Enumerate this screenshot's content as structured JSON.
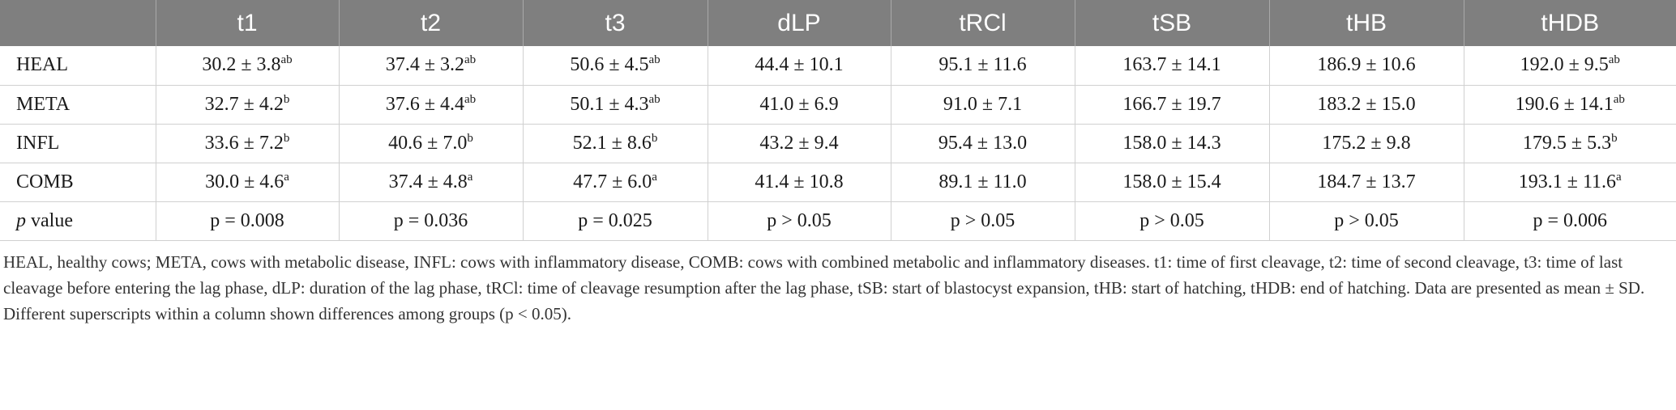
{
  "table": {
    "columns": [
      "",
      "t1",
      "t2",
      "t3",
      "dLP",
      "tRCl",
      "tSB",
      "tHB",
      "tHDB"
    ],
    "rows": [
      {
        "label": "HEAL",
        "cells": [
          {
            "v": "30.2 ± 3.8",
            "s": "ab"
          },
          {
            "v": "37.4 ± 3.2",
            "s": "ab"
          },
          {
            "v": "50.6 ± 4.5",
            "s": "ab"
          },
          {
            "v": "44.4 ± 10.1",
            "s": ""
          },
          {
            "v": "95.1 ± 11.6",
            "s": ""
          },
          {
            "v": "163.7 ± 14.1",
            "s": ""
          },
          {
            "v": "186.9 ± 10.6",
            "s": ""
          },
          {
            "v": "192.0 ± 9.5",
            "s": "ab"
          }
        ]
      },
      {
        "label": "META",
        "cells": [
          {
            "v": "32.7 ± 4.2",
            "s": "b"
          },
          {
            "v": "37.6 ± 4.4",
            "s": "ab"
          },
          {
            "v": "50.1 ± 4.3",
            "s": "ab"
          },
          {
            "v": "41.0 ± 6.9",
            "s": ""
          },
          {
            "v": "91.0 ± 7.1",
            "s": ""
          },
          {
            "v": "166.7 ± 19.7",
            "s": ""
          },
          {
            "v": "183.2 ± 15.0",
            "s": ""
          },
          {
            "v": "190.6 ± 14.1",
            "s": "ab"
          }
        ]
      },
      {
        "label": "INFL",
        "cells": [
          {
            "v": "33.6 ± 7.2",
            "s": "b"
          },
          {
            "v": "40.6 ± 7.0",
            "s": "b"
          },
          {
            "v": "52.1 ± 8.6",
            "s": "b"
          },
          {
            "v": "43.2 ± 9.4",
            "s": ""
          },
          {
            "v": "95.4 ± 13.0",
            "s": ""
          },
          {
            "v": "158.0 ± 14.3",
            "s": ""
          },
          {
            "v": "175.2 ± 9.8",
            "s": ""
          },
          {
            "v": "179.5 ± 5.3",
            "s": "b"
          }
        ]
      },
      {
        "label": "COMB",
        "cells": [
          {
            "v": "30.0 ± 4.6",
            "s": "a"
          },
          {
            "v": "37.4 ± 4.8",
            "s": "a"
          },
          {
            "v": "47.7 ± 6.0",
            "s": "a"
          },
          {
            "v": "41.4 ± 10.8",
            "s": ""
          },
          {
            "v": "89.1 ± 11.0",
            "s": ""
          },
          {
            "v": "158.0 ± 15.4",
            "s": ""
          },
          {
            "v": "184.7 ± 13.7",
            "s": ""
          },
          {
            "v": "193.1 ± 11.6",
            "s": "a"
          }
        ]
      }
    ],
    "pvalue_row": {
      "label_italic": "p",
      "label_rest": " value",
      "cells": [
        "p = 0.008",
        "p = 0.036",
        "p = 0.025",
        "p > 0.05",
        "p > 0.05",
        "p > 0.05",
        "p > 0.05",
        "p = 0.006"
      ]
    }
  },
  "footnote": "HEAL, healthy cows; META, cows with metabolic disease, INFL: cows with inflammatory disease, COMB: cows with combined metabolic and inflammatory diseases. t1: time of first cleavage, t2: time of second cleavage, t3: time of last cleavage before entering the lag phase, dLP: duration of the lag phase, tRCl: time of cleavage resumption after the lag phase, tSB: start of blastocyst expansion, tHB: start of hatching, tHDB: end of hatching. Data are presented as mean ± SD. Different superscripts within a column shown differences among groups (p < 0.05).",
  "colors": {
    "header_bg": "#7f7f7f",
    "header_text": "#ffffff",
    "grid_line": "#d0d0d0"
  }
}
